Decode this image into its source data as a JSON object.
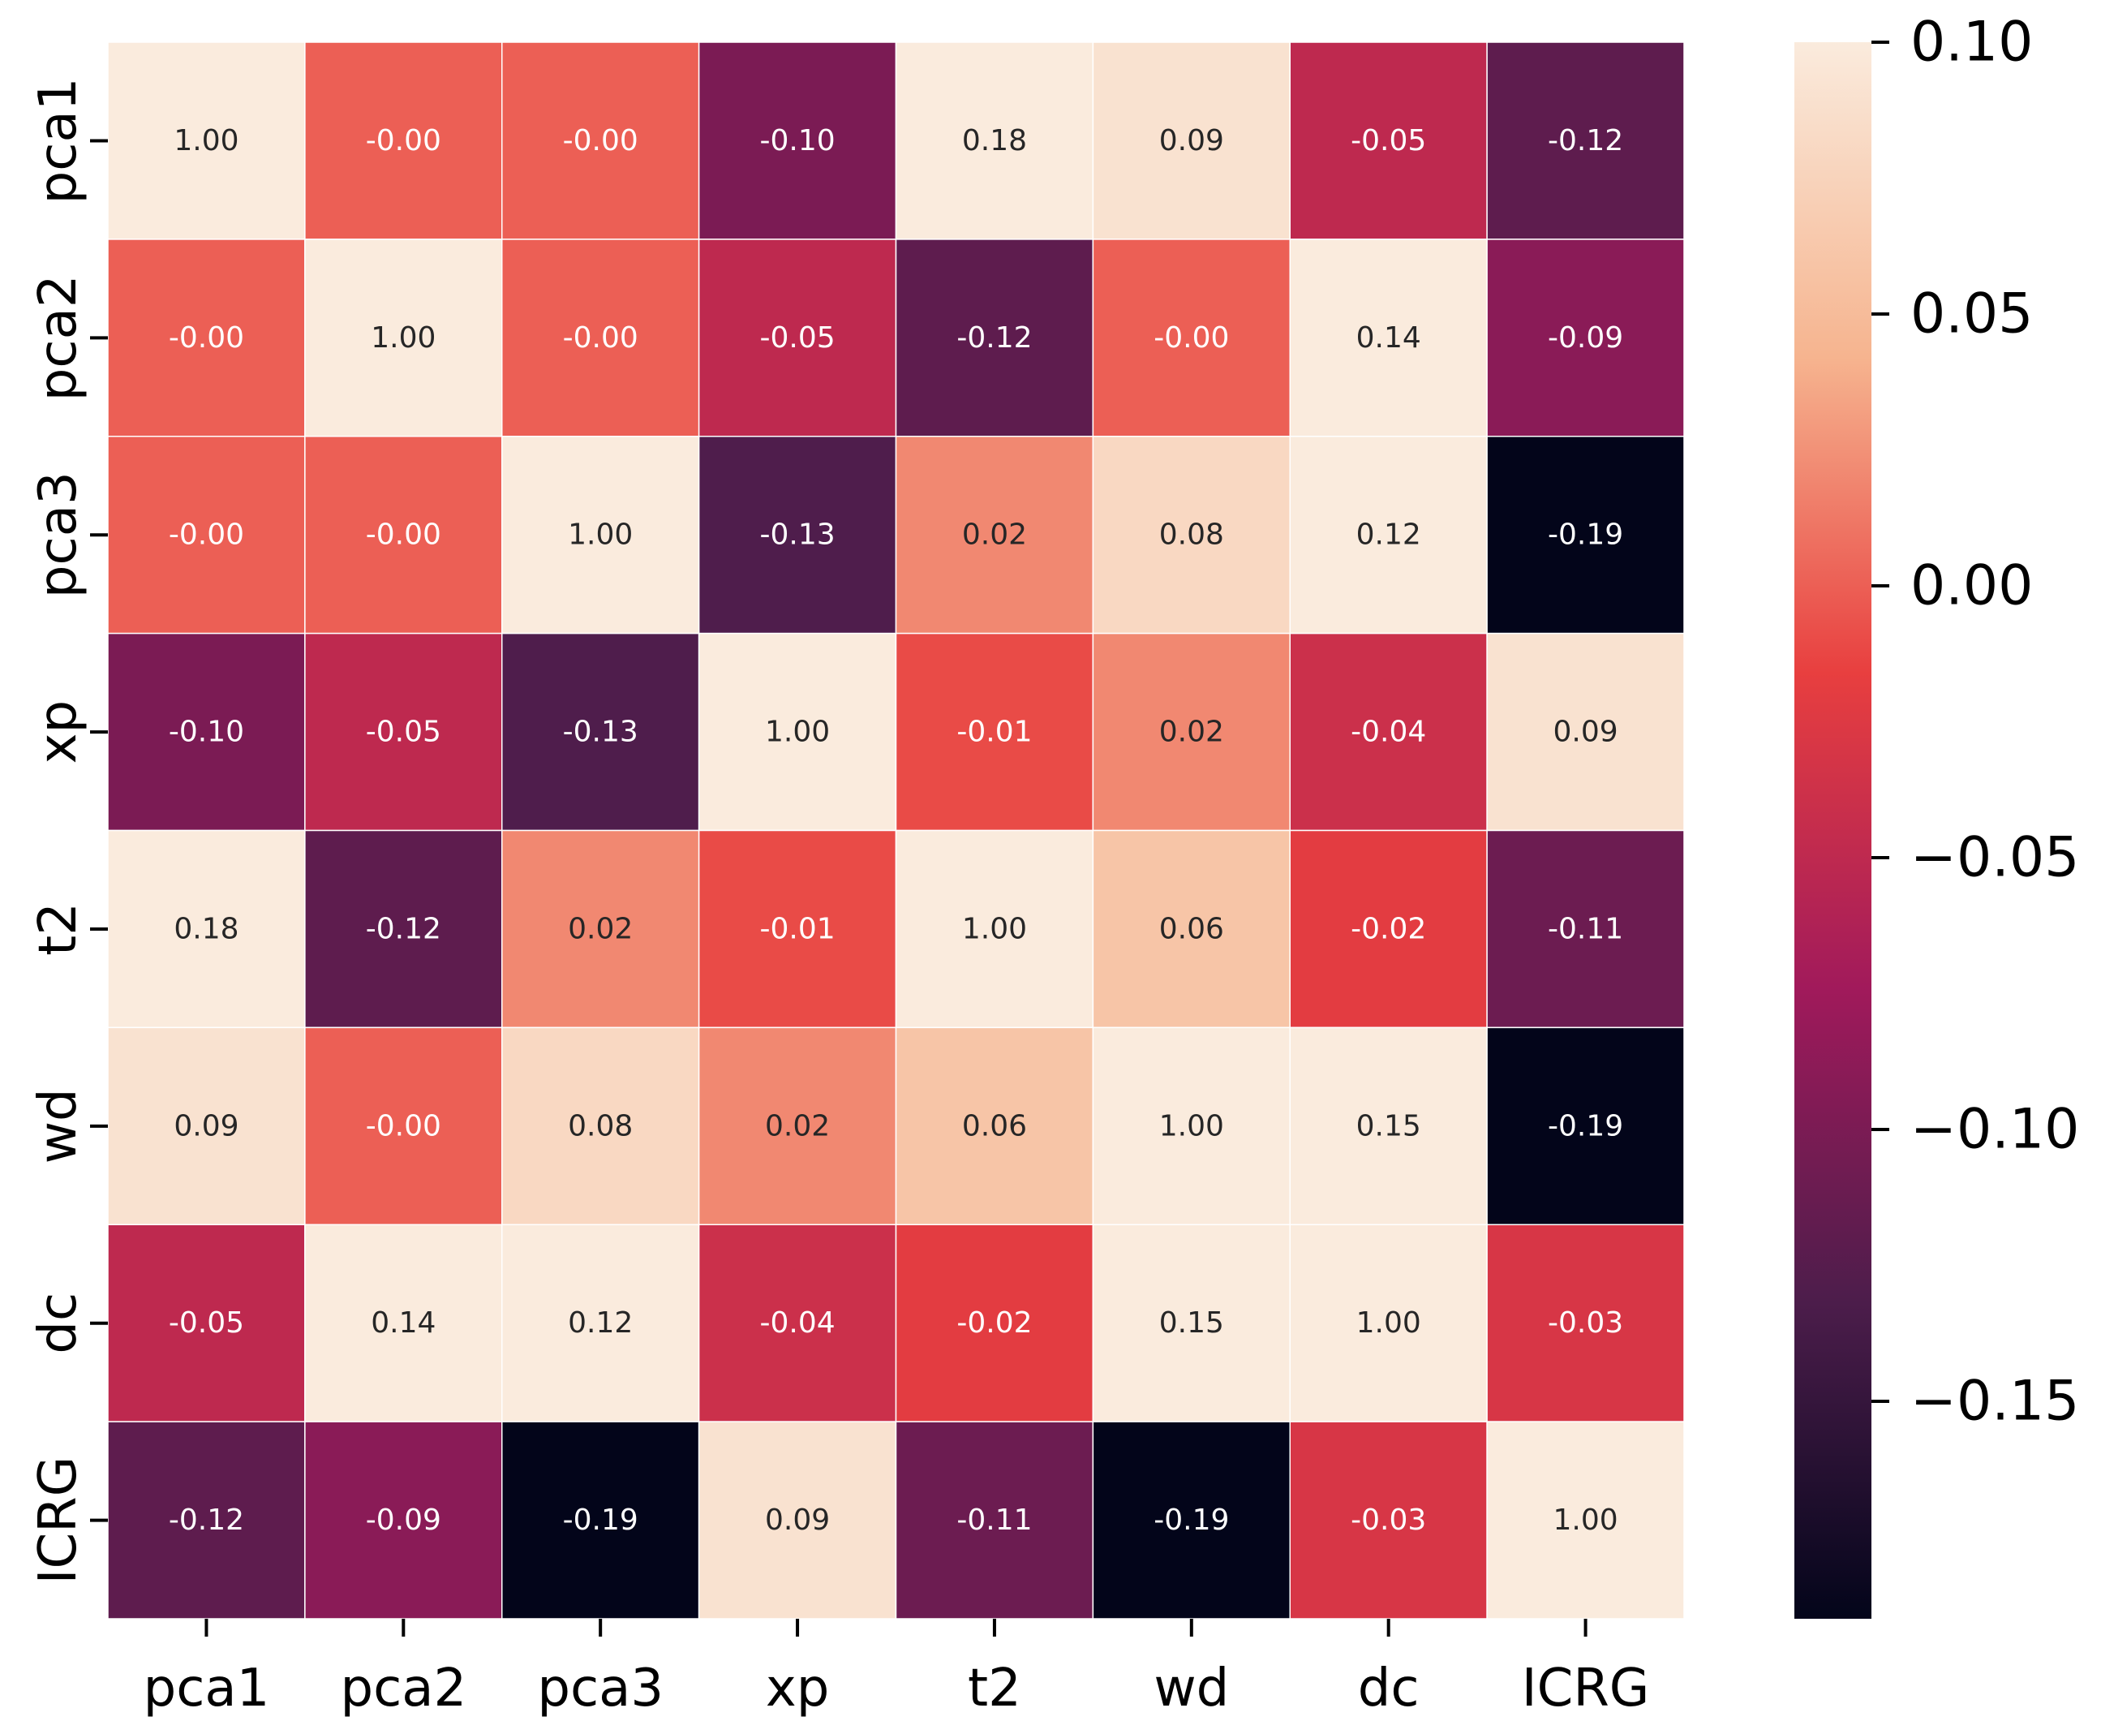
{
  "chart_data": {
    "type": "heatmap",
    "title": "",
    "xlabel": "",
    "ylabel": "",
    "row_labels": [
      "pca1",
      "pca2",
      "pca3",
      "xp",
      "t2",
      "wd",
      "dc",
      "ICRG"
    ],
    "col_labels": [
      "pca1",
      "pca2",
      "pca3",
      "xp",
      "t2",
      "wd",
      "dc",
      "ICRG"
    ],
    "values": [
      [
        1.0,
        -0.0,
        -0.0,
        -0.1,
        0.18,
        0.09,
        -0.05,
        -0.12
      ],
      [
        -0.0,
        1.0,
        -0.0,
        -0.05,
        -0.12,
        -0.0,
        0.14,
        -0.09
      ],
      [
        -0.0,
        -0.0,
        1.0,
        -0.13,
        0.02,
        0.08,
        0.12,
        -0.19
      ],
      [
        -0.1,
        -0.05,
        -0.13,
        1.0,
        -0.01,
        0.02,
        -0.04,
        0.09
      ],
      [
        0.18,
        -0.12,
        0.02,
        -0.01,
        1.0,
        0.06,
        -0.02,
        -0.11
      ],
      [
        0.09,
        -0.0,
        0.08,
        0.02,
        0.06,
        1.0,
        0.15,
        -0.19
      ],
      [
        -0.05,
        0.14,
        0.12,
        -0.04,
        -0.02,
        0.15,
        1.0,
        -0.03
      ],
      [
        -0.12,
        -0.09,
        -0.19,
        0.09,
        -0.11,
        -0.19,
        -0.03,
        1.0
      ]
    ],
    "cell_labels": [
      [
        "1.00",
        "-0.00",
        "-0.00",
        "-0.10",
        "0.18",
        "0.09",
        "-0.05",
        "-0.12"
      ],
      [
        "-0.00",
        "1.00",
        "-0.00",
        "-0.05",
        "-0.12",
        "-0.00",
        "0.14",
        "-0.09"
      ],
      [
        "-0.00",
        "-0.00",
        "1.00",
        "-0.13",
        "0.02",
        "0.08",
        "0.12",
        "-0.19"
      ],
      [
        "-0.10",
        "-0.05",
        "-0.13",
        "1.00",
        "-0.01",
        "0.02",
        "-0.04",
        "0.09"
      ],
      [
        "0.18",
        "-0.12",
        "0.02",
        "-0.01",
        "1.00",
        "0.06",
        "-0.02",
        "-0.11"
      ],
      [
        "0.09",
        "-0.00",
        "0.08",
        "0.02",
        "0.06",
        "1.00",
        "0.15",
        "-0.19"
      ],
      [
        "-0.05",
        "0.14",
        "0.12",
        "-0.04",
        "-0.02",
        "0.15",
        "1.00",
        "-0.03"
      ],
      [
        "-0.12",
        "-0.09",
        "-0.19",
        "0.09",
        "-0.11",
        "-0.19",
        "-0.03",
        "1.00"
      ]
    ],
    "colormap": "rocket",
    "colormap_stops": [
      "#03051a",
      "#4c1d4b",
      "#a11a5b",
      "#e83f3f",
      "#f6b48f",
      "#faebdd"
    ],
    "vmin": -0.19,
    "vmax": 0.1,
    "colorbar": {
      "ticks": [
        0.1,
        0.05,
        0.0,
        -0.05,
        -0.1,
        -0.15
      ],
      "tick_labels": [
        "0.10",
        "0.05",
        "0.00",
        "−0.05",
        "−0.10",
        "−0.15"
      ]
    },
    "text_color_light": "#ffffff",
    "text_color_dark": "#262626",
    "grid": false
  }
}
